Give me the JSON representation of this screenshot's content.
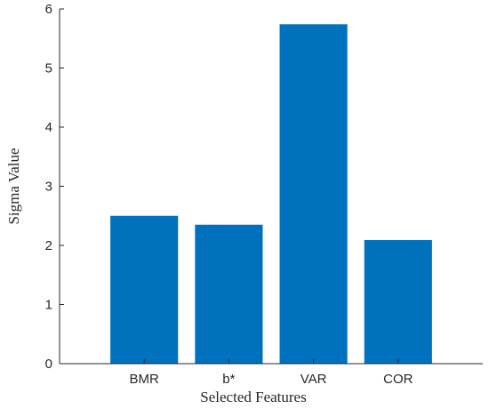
{
  "chart_data": {
    "type": "bar",
    "title": "",
    "xlabel": "Selected Features",
    "ylabel": "Sigma Value",
    "categories": [
      "BMR",
      "b*",
      "VAR",
      "COR"
    ],
    "values": [
      2.5,
      2.35,
      5.74,
      2.09
    ],
    "ylim": [
      0,
      6
    ],
    "xlim": [
      0,
      5
    ],
    "yticks": [
      "0",
      "1",
      "2",
      "3",
      "4",
      "5",
      "6"
    ],
    "grid": false,
    "box": "left-bottom",
    "bar_color": "#0072BD"
  }
}
